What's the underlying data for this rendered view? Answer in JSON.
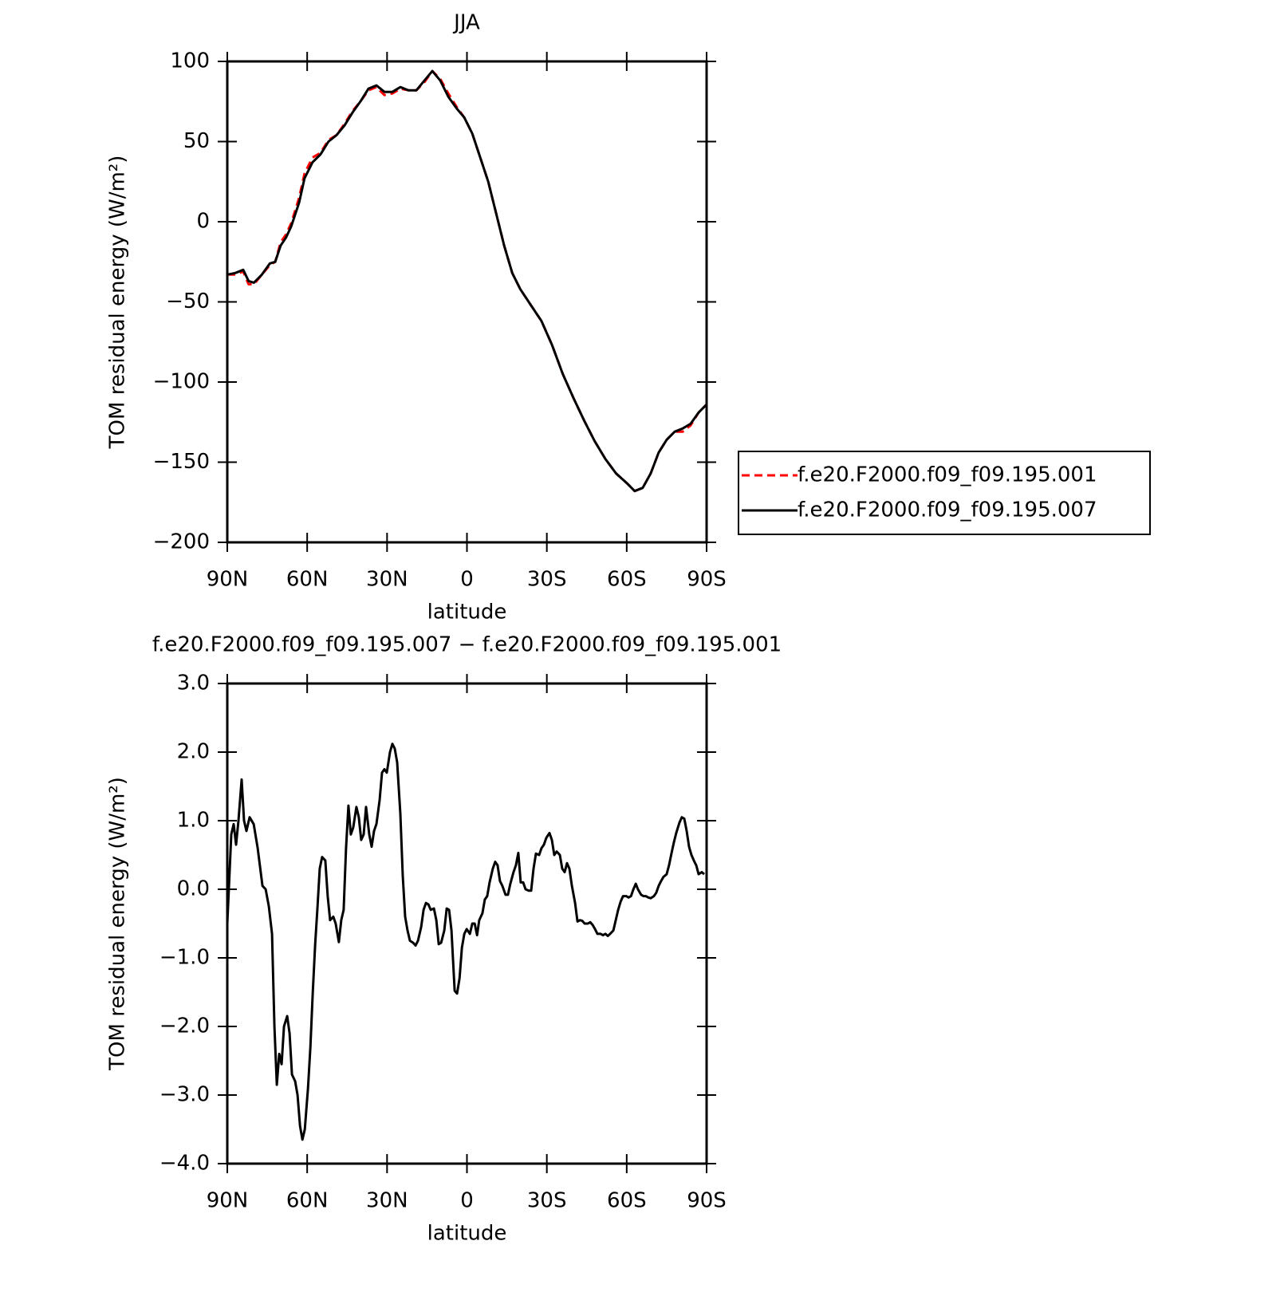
{
  "chart_data": [
    {
      "type": "line",
      "title": "JJA",
      "xlabel": "latitude",
      "ylabel": "TOM residual energy (W/m²)",
      "xlim": [
        90,
        -90
      ],
      "xticks": [
        {
          "value": 90,
          "label": "90N"
        },
        {
          "value": 60,
          "label": "60N"
        },
        {
          "value": 30,
          "label": "30N"
        },
        0,
        {
          "value": -30,
          "label": "30S"
        },
        {
          "value": -60,
          "label": "60S"
        },
        {
          "value": -90,
          "label": "90S"
        }
      ],
      "ylim": [
        -200,
        100
      ],
      "yticks": [
        {
          "value": -200,
          "label": "−200"
        },
        {
          "value": -150,
          "label": "−150"
        },
        {
          "value": -100,
          "label": "−100"
        },
        {
          "value": -50,
          "label": "−50"
        },
        0,
        50,
        100
      ],
      "legend": "right",
      "x": [
        90,
        87,
        84,
        82,
        80,
        77,
        74,
        72,
        70,
        68,
        66,
        63,
        61,
        58,
        55,
        52,
        49,
        46,
        43,
        40,
        37,
        34,
        31,
        28,
        25,
        22,
        19,
        16,
        13,
        10,
        7,
        4,
        1,
        -2,
        -5,
        -8,
        -11,
        -14,
        -17,
        -20,
        -24,
        -28,
        -32,
        -36,
        -40,
        -44,
        -48,
        -52,
        -56,
        -60,
        -63,
        -66,
        -69,
        -72,
        -75,
        -78,
        -81,
        -84,
        -87,
        -90
      ],
      "series": [
        {
          "name": "f.e20.F2000.f09_f09.195.001",
          "color": "#ff0000",
          "dash": true,
          "values": [
            -33,
            -33,
            -31,
            -39,
            -39,
            -33,
            -27,
            -25,
            -13,
            -8,
            -1,
            15,
            30,
            40,
            43,
            51,
            54,
            61,
            69,
            75,
            82,
            84,
            79,
            80,
            83,
            82,
            82,
            87,
            94,
            89,
            80,
            72,
            65,
            55,
            40,
            25,
            5,
            -15,
            -32,
            -42,
            -52,
            -62,
            -77,
            -95,
            -110,
            -124,
            -137,
            -148,
            -157,
            -163,
            -168,
            -166,
            -157,
            -144,
            -136,
            -131,
            -131,
            -127,
            -119,
            -114
          ]
        },
        {
          "name": "f.e20.F2000.f09_f09.195.007",
          "color": "#000000",
          "dash": false,
          "values": [
            -33,
            -32,
            -30,
            -37,
            -38,
            -33,
            -26,
            -25,
            -15,
            -10,
            -3,
            12,
            27,
            37,
            42,
            50,
            54,
            60,
            68,
            75,
            83,
            85,
            81,
            81,
            84,
            82,
            82,
            88,
            94,
            88,
            78,
            71,
            65,
            55,
            40,
            25,
            5,
            -15,
            -32,
            -42,
            -52,
            -62,
            -77,
            -95,
            -110,
            -124,
            -137,
            -148,
            -157,
            -163,
            -168,
            -166,
            -157,
            -144,
            -136,
            -131,
            -129,
            -126,
            -119,
            -114
          ]
        }
      ]
    },
    {
      "type": "line",
      "title": "f.e20.F2000.f09_f09.195.007 − f.e20.F2000.f09_f09.195.001",
      "xlabel": "latitude",
      "ylabel": "TOM residual energy (W/m²)",
      "xlim": [
        90,
        -90
      ],
      "xticks": [
        {
          "value": 90,
          "label": "90N"
        },
        {
          "value": 60,
          "label": "60N"
        },
        {
          "value": 30,
          "label": "30N"
        },
        0,
        {
          "value": -30,
          "label": "30S"
        },
        {
          "value": -60,
          "label": "60S"
        },
        {
          "value": -90,
          "label": "90S"
        }
      ],
      "ylim": [
        -4,
        3
      ],
      "yticks": [
        {
          "value": -4,
          "label": "−4.0"
        },
        {
          "value": -3,
          "label": "−3.0"
        },
        {
          "value": -2,
          "label": "−2.0"
        },
        {
          "value": -1,
          "label": "−1.0"
        },
        {
          "value": 0,
          "label": "0.0"
        },
        {
          "value": 1,
          "label": "1.0"
        },
        {
          "value": 2,
          "label": "2.0"
        },
        {
          "value": 3,
          "label": "3.0"
        }
      ],
      "x": [
        90,
        88.5,
        87.6,
        86.7,
        85.8,
        84.6,
        83.7,
        82.8,
        81.6,
        80.1,
        78.6,
        76.8,
        75.6,
        74.4,
        73.2,
        72.3,
        71.4,
        70.5,
        69.6,
        68.7,
        67.5,
        66.6,
        65.7,
        64.5,
        63.6,
        62.7,
        61.8,
        60.9,
        59.7,
        58.8,
        57.9,
        57.0,
        56.2,
        55.3,
        54.4,
        53.2,
        52.3,
        51.4,
        50.2,
        49.3,
        48.1,
        47.2,
        46.3,
        45.4,
        44.5,
        43.6,
        42.7,
        41.5,
        40.6,
        39.7,
        38.8,
        37.9,
        36.7,
        35.8,
        34.9,
        34.0,
        32.8,
        31.9,
        31.0,
        30.1,
        28.9,
        28.0,
        27.1,
        26.2,
        25.0,
        24.1,
        23.2,
        22.3,
        21.4,
        20.2,
        19.3,
        18.4,
        17.2,
        16.3,
        15.4,
        14.5,
        13.6,
        12.4,
        11.5,
        10.6,
        9.7,
        8.5,
        7.6,
        6.7,
        5.8,
        4.6,
        3.7,
        2.8,
        1.9,
        1.0,
        0.1,
        -1.1,
        -2.0,
        -2.9,
        -3.8,
        -4.6,
        -5.8,
        -6.7,
        -7.6,
        -8.5,
        -9.7,
        -10.6,
        -11.5,
        -12.4,
        -13.3,
        -14.5,
        -15.4,
        -16.3,
        -17.5,
        -18.4,
        -19.3,
        -20.2,
        -21.1,
        -22.0,
        -23.2,
        -24.1,
        -25.0,
        -25.9,
        -27.1,
        -28.0,
        -28.9,
        -29.8,
        -31.0,
        -31.9,
        -32.8,
        -33.7,
        -34.9,
        -35.8,
        -36.7,
        -37.6,
        -38.5,
        -39.4,
        -40.6,
        -41.5,
        -42.4,
        -43.3,
        -44.2,
        -45.4,
        -46.3,
        -47.2,
        -48.1,
        -49.0,
        -50.2,
        -51.1,
        -52.0,
        -52.9,
        -53.8,
        -55.0,
        -55.9,
        -56.8,
        -57.7,
        -58.6,
        -59.8,
        -60.7,
        -61.6,
        -62.5,
        -63.4,
        -64.2,
        -65.4,
        -66.3,
        -67.2,
        -68.1,
        -69.0,
        -70.2,
        -71.1,
        -72.0,
        -72.9,
        -73.8,
        -75.0,
        -75.9,
        -76.8,
        -77.7,
        -78.6,
        -79.8,
        -80.7,
        -81.6,
        -82.5,
        -83.4,
        -84.3,
        -85.2,
        -86.1,
        -87.0,
        -88.2,
        -89.1
      ],
      "series": [
        {
          "color": "#000000",
          "dash": false,
          "values": [
            -0.5,
            0.8,
            0.95,
            0.65,
            1.0,
            1.6,
            1.0,
            0.85,
            1.05,
            0.95,
            0.6,
            0.05,
            0.0,
            -0.25,
            -0.65,
            -2.0,
            -2.85,
            -2.4,
            -2.55,
            -2.0,
            -1.85,
            -2.1,
            -2.7,
            -2.8,
            -3.0,
            -3.45,
            -3.65,
            -3.5,
            -2.9,
            -2.3,
            -1.5,
            -0.8,
            -0.3,
            0.3,
            0.47,
            0.42,
            -0.1,
            -0.45,
            -0.4,
            -0.5,
            -0.77,
            -0.45,
            -0.3,
            0.6,
            1.22,
            0.8,
            0.9,
            1.2,
            1.05,
            0.72,
            0.8,
            1.2,
            0.8,
            0.62,
            0.85,
            0.95,
            1.3,
            1.7,
            1.75,
            1.7,
            2.0,
            2.12,
            2.05,
            1.85,
            1.1,
            0.2,
            -0.4,
            -0.6,
            -0.75,
            -0.78,
            -0.82,
            -0.75,
            -0.55,
            -0.3,
            -0.2,
            -0.22,
            -0.3,
            -0.28,
            -0.45,
            -0.8,
            -0.78,
            -0.6,
            -0.28,
            -0.3,
            -0.6,
            -1.48,
            -1.52,
            -1.3,
            -0.85,
            -0.65,
            -0.58,
            -0.65,
            -0.5,
            -0.5,
            -0.67,
            -0.45,
            -0.35,
            -0.15,
            -0.1,
            0.1,
            0.3,
            0.4,
            0.35,
            0.12,
            0.05,
            -0.08,
            -0.08,
            0.08,
            0.25,
            0.35,
            0.53,
            0.1,
            0.1,
            0.0,
            -0.02,
            -0.02,
            0.3,
            0.52,
            0.5,
            0.6,
            0.65,
            0.75,
            0.82,
            0.72,
            0.5,
            0.55,
            0.5,
            0.3,
            0.25,
            0.38,
            0.3,
            0.05,
            -0.2,
            -0.47,
            -0.45,
            -0.46,
            -0.5,
            -0.5,
            -0.48,
            -0.52,
            -0.58,
            -0.65,
            -0.65,
            -0.67,
            -0.65,
            -0.68,
            -0.65,
            -0.6,
            -0.45,
            -0.3,
            -0.18,
            -0.1,
            -0.1,
            -0.12,
            -0.1,
            0.0,
            0.08,
            0.0,
            -0.08,
            -0.1,
            -0.1,
            -0.12,
            -0.13,
            -0.1,
            -0.05,
            0.05,
            0.12,
            0.18,
            0.22,
            0.35,
            0.52,
            0.68,
            0.82,
            0.97,
            1.05,
            1.03,
            0.85,
            0.62,
            0.5,
            0.42,
            0.35,
            0.22,
            0.25,
            0.22
          ]
        }
      ]
    }
  ]
}
